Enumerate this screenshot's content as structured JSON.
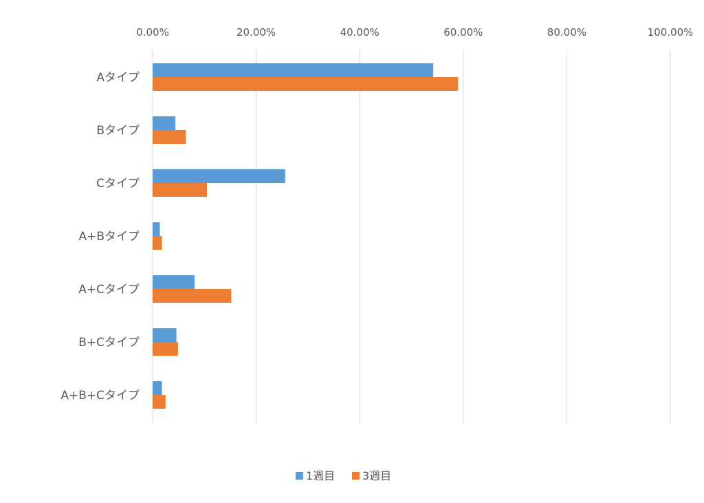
{
  "chart_data": {
    "type": "bar",
    "orientation": "horizontal",
    "categories": [
      "Aタイプ",
      "Bタイプ",
      "Cタイプ",
      "A+Bタイプ",
      "A+Cタイプ",
      "B+Cタイプ",
      "A+B+Cタイプ"
    ],
    "series": [
      {
        "name": "1週目",
        "color": "#5b9bd5",
        "values": [
          54.2,
          4.4,
          25.6,
          1.4,
          8.1,
          4.6,
          1.8
        ]
      },
      {
        "name": "3週目",
        "color": "#ed7d31",
        "values": [
          59.0,
          6.4,
          10.5,
          1.8,
          15.2,
          4.9,
          2.5
        ]
      }
    ],
    "xlim": [
      0,
      100
    ],
    "x_ticks": [
      "0.00%",
      "20.00%",
      "40.00%",
      "60.00%",
      "80.00%",
      "100.00%"
    ],
    "x_axis_position": "top",
    "grid": true,
    "legend_position": "bottom",
    "title": "",
    "xlabel": "",
    "ylabel": ""
  }
}
